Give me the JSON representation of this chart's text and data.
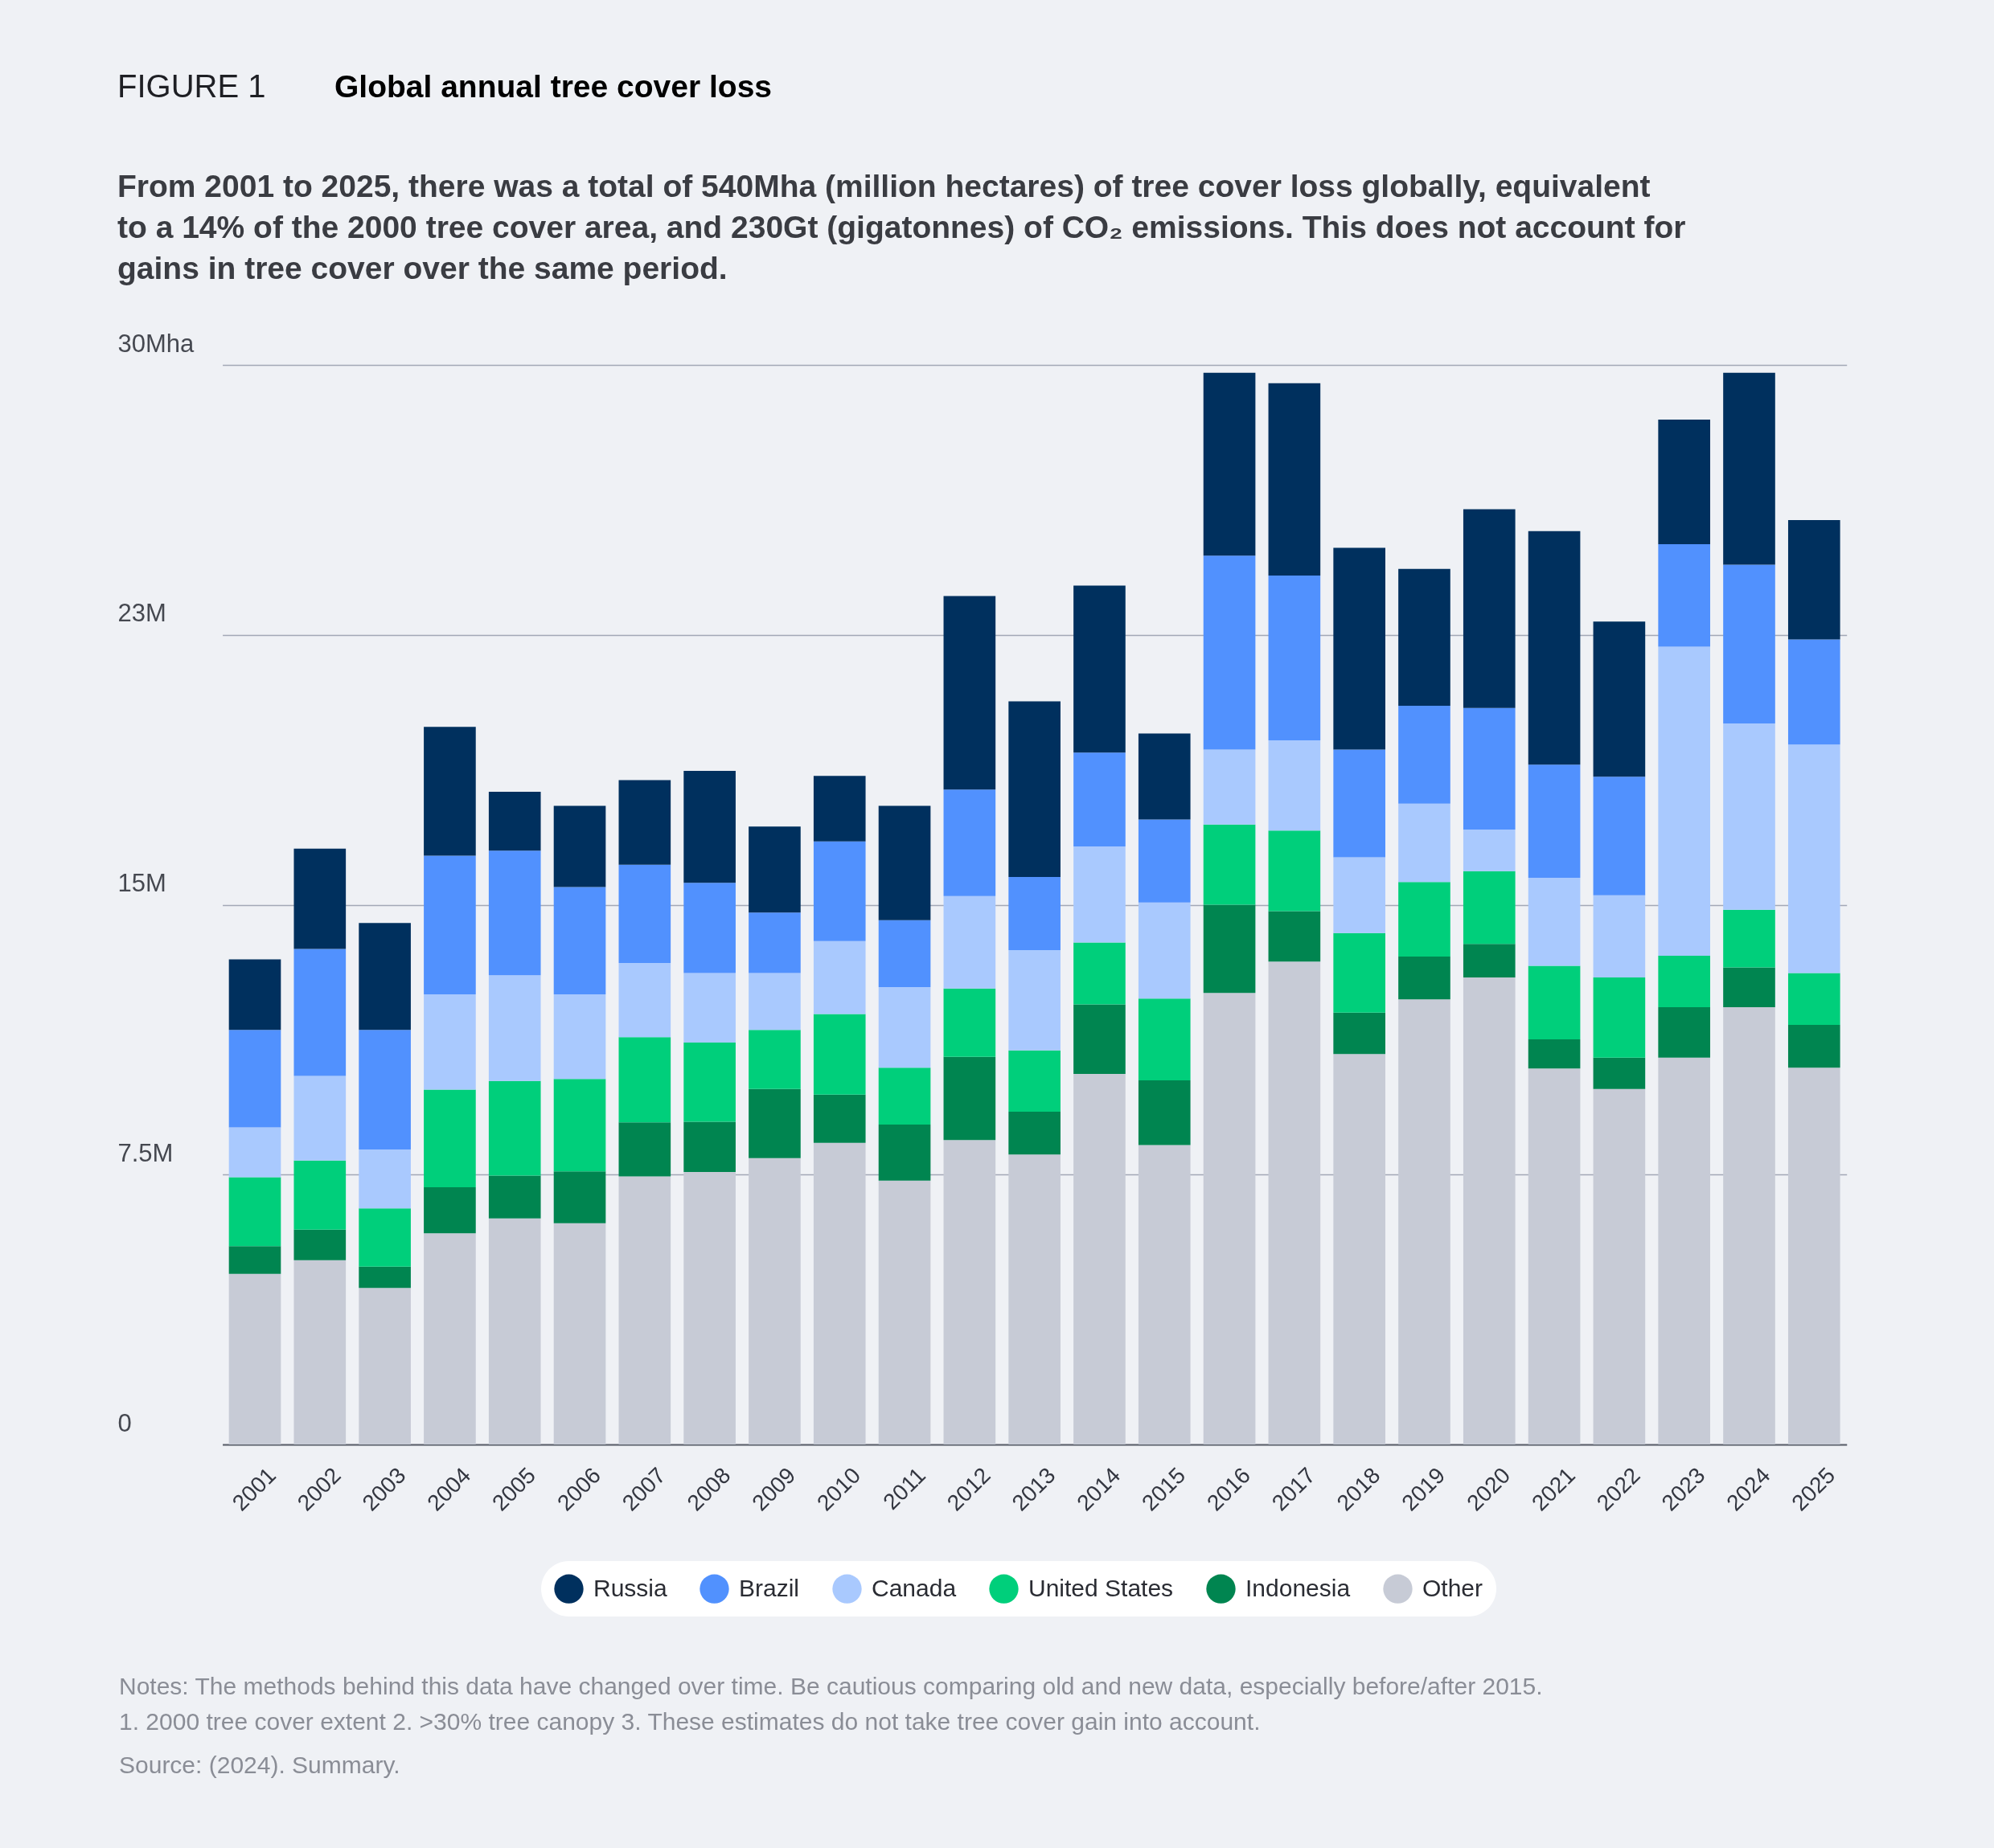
{
  "chart_data": {
    "type": "bar",
    "title": "Global annual tree cover loss",
    "subtitle": "From 2001 to 2025, there was a total of 540Mha (million hectares) of tree cover loss globally, equivalent to a 14% of the 2000 tree cover area, and 230Gt (gigatonnes) of CO₂ emissions. This does not account for gains in tree cover over the same period.",
    "annotations": [
      "FIGURE 1",
      "Notes: The methods behind this data have changed over time. Be cautious comparing old and new data, especially before/after 2015.",
      "1. 2000 tree cover extent 2. >30% tree canopy 3. These estimates do not take tree cover gain into account.",
      "Source: (2024). Summary."
    ],
    "categories": [
      "2001",
      "2002",
      "2003",
      "2004",
      "2005",
      "2006",
      "2007",
      "2008",
      "2009",
      "2010",
      "2011",
      "2012",
      "2013",
      "2014",
      "2015",
      "2016",
      "2017",
      "2018",
      "2019",
      "2020",
      "2021",
      "2022",
      "2023",
      "2024",
      "2025"
    ],
    "stacked": true,
    "series": [
      {
        "name": "Other",
        "color": "#c7cbd6",
        "values": [
          4.74,
          5.12,
          4.35,
          5.87,
          6.28,
          6.15,
          7.45,
          7.57,
          7.96,
          8.38,
          7.33,
          8.46,
          8.06,
          10.3,
          8.32,
          12.55,
          13.42,
          10.85,
          12.37,
          12.98,
          10.45,
          9.88,
          10.75,
          12.15,
          10.47
        ]
      },
      {
        "name": "Indonesia",
        "color": "#008550",
        "values": [
          0.77,
          0.85,
          0.59,
          1.28,
          1.19,
          1.44,
          1.5,
          1.4,
          1.92,
          1.34,
          1.56,
          2.31,
          1.19,
          1.93,
          1.8,
          2.45,
          1.4,
          1.15,
          1.19,
          0.93,
          0.81,
          0.87,
          1.4,
          1.11,
          1.19
        ]
      },
      {
        "name": "United States",
        "color": "#00cf7b",
        "values": [
          1.92,
          1.92,
          1.62,
          2.71,
          2.63,
          2.57,
          2.37,
          2.2,
          1.64,
          2.24,
          1.58,
          1.9,
          1.7,
          1.72,
          2.27,
          2.23,
          2.24,
          2.21,
          2.07,
          2.02,
          2.04,
          2.23,
          1.43,
          1.6,
          1.44
        ]
      },
      {
        "name": "Canada",
        "color": "#a9c9fe",
        "values": [
          1.38,
          2.35,
          1.64,
          2.65,
          2.94,
          2.35,
          2.06,
          1.93,
          1.58,
          2.03,
          2.24,
          2.57,
          2.79,
          2.67,
          2.67,
          2.08,
          2.51,
          2.11,
          2.18,
          1.16,
          2.45,
          2.28,
          8.59,
          5.18,
          6.35
        ]
      },
      {
        "name": "Brazil",
        "color": "#5191fe",
        "values": [
          2.71,
          3.53,
          3.32,
          3.85,
          3.46,
          2.98,
          2.73,
          2.51,
          1.68,
          2.77,
          1.86,
          2.96,
          2.03,
          2.61,
          2.31,
          5.39,
          4.58,
          2.99,
          2.72,
          3.38,
          3.14,
          3.3,
          2.85,
          4.41,
          2.92
        ]
      },
      {
        "name": "Russia",
        "color": "#00305e",
        "values": [
          1.96,
          2.79,
          2.97,
          3.58,
          1.64,
          2.26,
          2.35,
          3.11,
          2.39,
          1.82,
          3.18,
          5.38,
          4.88,
          4.64,
          2.39,
          5.08,
          5.34,
          5.61,
          3.8,
          5.52,
          6.49,
          4.31,
          3.46,
          5.33,
          3.32
        ]
      }
    ],
    "ylim": [
      0,
      30
    ],
    "yticks": [
      {
        "value": 0,
        "label": "0"
      },
      {
        "value": 7.5,
        "label": "7.5M"
      },
      {
        "value": 15,
        "label": "15M"
      },
      {
        "value": 22.5,
        "label": "23M"
      },
      {
        "value": 30,
        "label": "30Mha"
      }
    ],
    "grid": "y",
    "legend": "bottom"
  }
}
